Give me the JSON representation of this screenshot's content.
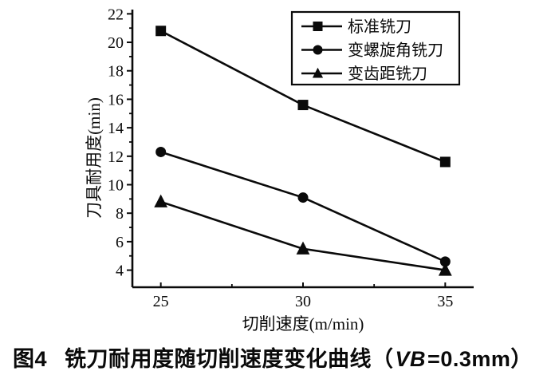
{
  "figure_caption": {
    "label": "图4",
    "title": "铣刀耐用度随切削速度变化曲线（",
    "italic_var": "VB",
    "suffix": "=0.3mm）"
  },
  "chart_data": {
    "type": "line",
    "title": "",
    "xlabel": "切削速度(m/min)",
    "ylabel": "刀具耐用度(min)",
    "x": [
      25,
      30,
      35
    ],
    "x_ticks": [
      25,
      30,
      35
    ],
    "x_minor_ticks": [
      27.5,
      32.5
    ],
    "y_ticks": [
      4,
      6,
      8,
      10,
      12,
      14,
      16,
      18,
      20,
      22
    ],
    "y_minor_ticks": [
      5,
      7,
      9,
      11,
      13,
      15,
      17,
      19,
      21
    ],
    "xlim": [
      24.0,
      36.0
    ],
    "ylim": [
      2.8,
      22.3
    ],
    "grid": false,
    "legend_position": "top-right",
    "colors": {
      "line": "#0a0a0a",
      "background": "#ffffff",
      "text": "#0a0a0a"
    },
    "series": [
      {
        "name": "标准铣刀",
        "marker": "square",
        "values": [
          20.8,
          15.6,
          11.6
        ]
      },
      {
        "name": "变螺旋角铣刀",
        "marker": "circle",
        "values": [
          12.3,
          9.1,
          4.6
        ]
      },
      {
        "name": "变齿距铣刀",
        "marker": "triangle",
        "values": [
          8.8,
          5.5,
          4.0
        ]
      }
    ]
  }
}
